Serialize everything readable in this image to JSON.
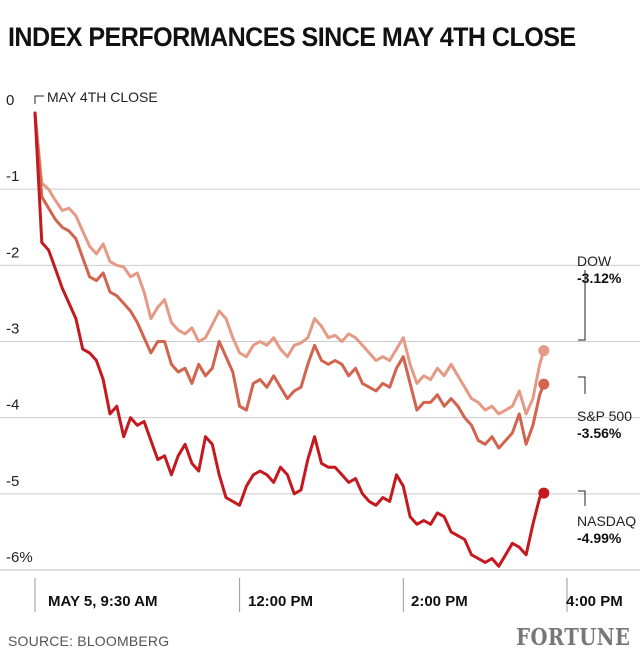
{
  "title": "INDEX PERFORMANCES SINCE MAY 4TH CLOSE",
  "source": "SOURCE: BLOOMBERG",
  "brand": "FORTUNE",
  "chart_data": {
    "type": "line",
    "title": "INDEX PERFORMANCES SINCE MAY 4TH CLOSE",
    "ylim": [
      -6,
      0
    ],
    "y_ticks": [
      "0",
      "-1",
      "-2",
      "-3",
      "-4",
      "-5",
      "-6%"
    ],
    "x_ticks": [
      "MAY 5, 9:30 AM",
      "12:00 PM",
      "2:00 PM",
      "4:00 PM"
    ],
    "x_domain_minutes": [
      0,
      390
    ],
    "annotation": "MAY 4TH CLOSE",
    "grid": true,
    "series": [
      {
        "name": "DOW",
        "end_label": "-3.12%",
        "color": "#e59a86",
        "points": [
          [
            0,
            0
          ],
          [
            5,
            -0.92
          ],
          [
            10,
            -1.0
          ],
          [
            15,
            -1.15
          ],
          [
            20,
            -1.28
          ],
          [
            25,
            -1.25
          ],
          [
            30,
            -1.35
          ],
          [
            35,
            -1.55
          ],
          [
            40,
            -1.75
          ],
          [
            45,
            -1.85
          ],
          [
            50,
            -1.72
          ],
          [
            55,
            -1.95
          ],
          [
            60,
            -2.0
          ],
          [
            65,
            -2.02
          ],
          [
            70,
            -2.15
          ],
          [
            75,
            -2.1
          ],
          [
            80,
            -2.35
          ],
          [
            85,
            -2.7
          ],
          [
            90,
            -2.55
          ],
          [
            95,
            -2.45
          ],
          [
            100,
            -2.75
          ],
          [
            105,
            -2.85
          ],
          [
            110,
            -2.9
          ],
          [
            115,
            -2.82
          ],
          [
            120,
            -3.0
          ],
          [
            125,
            -2.95
          ],
          [
            130,
            -2.78
          ],
          [
            135,
            -2.6
          ],
          [
            140,
            -2.7
          ],
          [
            145,
            -2.95
          ],
          [
            150,
            -3.15
          ],
          [
            155,
            -3.2
          ],
          [
            160,
            -3.05
          ],
          [
            165,
            -3.0
          ],
          [
            170,
            -3.05
          ],
          [
            175,
            -2.95
          ],
          [
            180,
            -3.1
          ],
          [
            185,
            -3.2
          ],
          [
            190,
            -3.05
          ],
          [
            195,
            -3.02
          ],
          [
            200,
            -2.95
          ],
          [
            205,
            -2.7
          ],
          [
            210,
            -2.8
          ],
          [
            215,
            -2.95
          ],
          [
            220,
            -2.92
          ],
          [
            225,
            -3.0
          ],
          [
            230,
            -2.9
          ],
          [
            235,
            -2.95
          ],
          [
            240,
            -3.05
          ],
          [
            245,
            -3.15
          ],
          [
            250,
            -3.25
          ],
          [
            255,
            -3.2
          ],
          [
            260,
            -3.25
          ],
          [
            265,
            -3.1
          ],
          [
            270,
            -2.95
          ],
          [
            275,
            -3.3
          ],
          [
            280,
            -3.55
          ],
          [
            285,
            -3.45
          ],
          [
            290,
            -3.5
          ],
          [
            295,
            -3.35
          ],
          [
            300,
            -3.45
          ],
          [
            305,
            -3.3
          ],
          [
            310,
            -3.45
          ],
          [
            315,
            -3.6
          ],
          [
            320,
            -3.75
          ],
          [
            325,
            -3.8
          ],
          [
            330,
            -3.9
          ],
          [
            335,
            -3.85
          ],
          [
            340,
            -3.95
          ],
          [
            345,
            -3.9
          ],
          [
            350,
            -3.85
          ],
          [
            355,
            -3.65
          ],
          [
            360,
            -3.95
          ],
          [
            365,
            -3.75
          ],
          [
            370,
            -3.3
          ],
          [
            373,
            -3.12
          ]
        ]
      },
      {
        "name": "S&P 500",
        "end_label": "-3.56%",
        "color": "#d2644f",
        "points": [
          [
            0,
            0
          ],
          [
            5,
            -1.1
          ],
          [
            10,
            -1.25
          ],
          [
            15,
            -1.4
          ],
          [
            20,
            -1.5
          ],
          [
            25,
            -1.55
          ],
          [
            30,
            -1.65
          ],
          [
            35,
            -1.9
          ],
          [
            40,
            -2.15
          ],
          [
            45,
            -2.2
          ],
          [
            50,
            -2.1
          ],
          [
            55,
            -2.35
          ],
          [
            60,
            -2.4
          ],
          [
            65,
            -2.5
          ],
          [
            70,
            -2.6
          ],
          [
            75,
            -2.75
          ],
          [
            80,
            -2.95
          ],
          [
            85,
            -3.15
          ],
          [
            90,
            -3.0
          ],
          [
            95,
            -3.0
          ],
          [
            100,
            -3.3
          ],
          [
            105,
            -3.4
          ],
          [
            110,
            -3.35
          ],
          [
            115,
            -3.55
          ],
          [
            120,
            -3.3
          ],
          [
            125,
            -3.45
          ],
          [
            130,
            -3.35
          ],
          [
            135,
            -3.0
          ],
          [
            140,
            -3.2
          ],
          [
            145,
            -3.4
          ],
          [
            150,
            -3.85
          ],
          [
            155,
            -3.9
          ],
          [
            160,
            -3.55
          ],
          [
            165,
            -3.5
          ],
          [
            170,
            -3.6
          ],
          [
            175,
            -3.45
          ],
          [
            180,
            -3.6
          ],
          [
            185,
            -3.75
          ],
          [
            190,
            -3.65
          ],
          [
            195,
            -3.6
          ],
          [
            200,
            -3.3
          ],
          [
            205,
            -3.05
          ],
          [
            210,
            -3.25
          ],
          [
            215,
            -3.3
          ],
          [
            220,
            -3.25
          ],
          [
            225,
            -3.3
          ],
          [
            230,
            -3.45
          ],
          [
            235,
            -3.35
          ],
          [
            240,
            -3.55
          ],
          [
            245,
            -3.6
          ],
          [
            250,
            -3.65
          ],
          [
            255,
            -3.55
          ],
          [
            260,
            -3.6
          ],
          [
            265,
            -3.35
          ],
          [
            270,
            -3.2
          ],
          [
            275,
            -3.55
          ],
          [
            280,
            -3.9
          ],
          [
            285,
            -3.8
          ],
          [
            290,
            -3.8
          ],
          [
            295,
            -3.7
          ],
          [
            300,
            -3.85
          ],
          [
            305,
            -3.75
          ],
          [
            310,
            -3.85
          ],
          [
            315,
            -4.0
          ],
          [
            320,
            -4.1
          ],
          [
            325,
            -4.3
          ],
          [
            330,
            -4.35
          ],
          [
            335,
            -4.25
          ],
          [
            340,
            -4.4
          ],
          [
            345,
            -4.3
          ],
          [
            350,
            -4.2
          ],
          [
            355,
            -3.95
          ],
          [
            360,
            -4.35
          ],
          [
            365,
            -4.1
          ],
          [
            370,
            -3.7
          ],
          [
            373,
            -3.56
          ]
        ]
      },
      {
        "name": "NASDAQ",
        "end_label": "-4.99%",
        "color": "#c41a1f",
        "points": [
          [
            0,
            0
          ],
          [
            5,
            -1.7
          ],
          [
            10,
            -1.8
          ],
          [
            15,
            -2.05
          ],
          [
            20,
            -2.3
          ],
          [
            25,
            -2.5
          ],
          [
            30,
            -2.7
          ],
          [
            35,
            -3.1
          ],
          [
            40,
            -3.15
          ],
          [
            45,
            -3.25
          ],
          [
            50,
            -3.5
          ],
          [
            55,
            -3.95
          ],
          [
            60,
            -3.85
          ],
          [
            65,
            -4.25
          ],
          [
            70,
            -4.0
          ],
          [
            75,
            -4.1
          ],
          [
            80,
            -4.05
          ],
          [
            85,
            -4.3
          ],
          [
            90,
            -4.55
          ],
          [
            95,
            -4.5
          ],
          [
            100,
            -4.75
          ],
          [
            105,
            -4.5
          ],
          [
            110,
            -4.35
          ],
          [
            115,
            -4.6
          ],
          [
            120,
            -4.7
          ],
          [
            125,
            -4.25
          ],
          [
            130,
            -4.35
          ],
          [
            135,
            -4.75
          ],
          [
            140,
            -5.05
          ],
          [
            145,
            -5.1
          ],
          [
            150,
            -5.15
          ],
          [
            155,
            -4.9
          ],
          [
            160,
            -4.75
          ],
          [
            165,
            -4.7
          ],
          [
            170,
            -4.75
          ],
          [
            175,
            -4.85
          ],
          [
            180,
            -4.65
          ],
          [
            185,
            -4.75
          ],
          [
            190,
            -5.0
          ],
          [
            195,
            -4.95
          ],
          [
            200,
            -4.55
          ],
          [
            205,
            -4.25
          ],
          [
            210,
            -4.6
          ],
          [
            215,
            -4.65
          ],
          [
            220,
            -4.65
          ],
          [
            225,
            -4.75
          ],
          [
            230,
            -4.85
          ],
          [
            235,
            -4.8
          ],
          [
            240,
            -5.0
          ],
          [
            245,
            -5.1
          ],
          [
            250,
            -5.15
          ],
          [
            255,
            -5.05
          ],
          [
            260,
            -5.1
          ],
          [
            265,
            -4.75
          ],
          [
            270,
            -4.9
          ],
          [
            275,
            -5.3
          ],
          [
            280,
            -5.4
          ],
          [
            285,
            -5.35
          ],
          [
            290,
            -5.4
          ],
          [
            295,
            -5.25
          ],
          [
            300,
            -5.3
          ],
          [
            305,
            -5.5
          ],
          [
            310,
            -5.55
          ],
          [
            315,
            -5.6
          ],
          [
            320,
            -5.8
          ],
          [
            325,
            -5.85
          ],
          [
            330,
            -5.9
          ],
          [
            335,
            -5.85
          ],
          [
            340,
            -5.95
          ],
          [
            345,
            -5.8
          ],
          [
            350,
            -5.65
          ],
          [
            355,
            -5.7
          ],
          [
            360,
            -5.8
          ],
          [
            365,
            -5.4
          ],
          [
            370,
            -5.05
          ],
          [
            373,
            -4.99
          ]
        ]
      }
    ]
  }
}
